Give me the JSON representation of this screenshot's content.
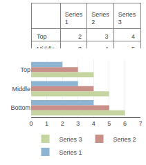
{
  "chart_data": {
    "type": "bar",
    "orientation": "horizontal",
    "categories": [
      "Top",
      "Middle",
      "Bottom"
    ],
    "series": [
      {
        "name": "Series 1",
        "color": "#8eb4d4",
        "values": [
          2,
          3,
          4
        ]
      },
      {
        "name": "Series 2",
        "color": "#c9908a",
        "values": [
          3,
          4,
          5
        ]
      },
      {
        "name": "Series 3",
        "color": "#c5d5a0",
        "values": [
          4,
          5,
          6
        ]
      }
    ],
    "xlim": [
      0,
      7
    ],
    "xticks": [
      0,
      1,
      2,
      3,
      4,
      5,
      6,
      7
    ],
    "grid": true,
    "legend": "bottom"
  }
}
